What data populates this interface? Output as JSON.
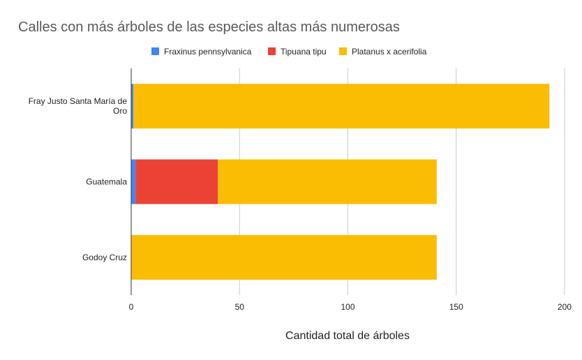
{
  "chart_data": {
    "type": "bar",
    "orientation": "horizontal",
    "stacked": true,
    "title": "Calles con más árboles de las especies altas más numerosas",
    "xlabel": "Cantidad total de árboles",
    "ylabel": "",
    "xlim": [
      0,
      200
    ],
    "xticks": [
      0,
      50,
      100,
      150,
      200
    ],
    "grid": true,
    "legend_position": "top",
    "categories": [
      [
        "Fray Justo Santa María de",
        "Oro"
      ],
      [
        "Guatemala"
      ],
      [
        "Godoy Cruz"
      ]
    ],
    "series": [
      {
        "name": "Fraxinus pennsylvanica",
        "color": "#4285f4",
        "values": [
          1,
          2,
          0
        ]
      },
      {
        "name": "Tipuana tipu",
        "color": "#ea4335",
        "values": [
          0,
          38,
          0
        ]
      },
      {
        "name": "Platanus x acerifolia",
        "color": "#fbbc04",
        "values": [
          192,
          101,
          141
        ]
      }
    ]
  }
}
